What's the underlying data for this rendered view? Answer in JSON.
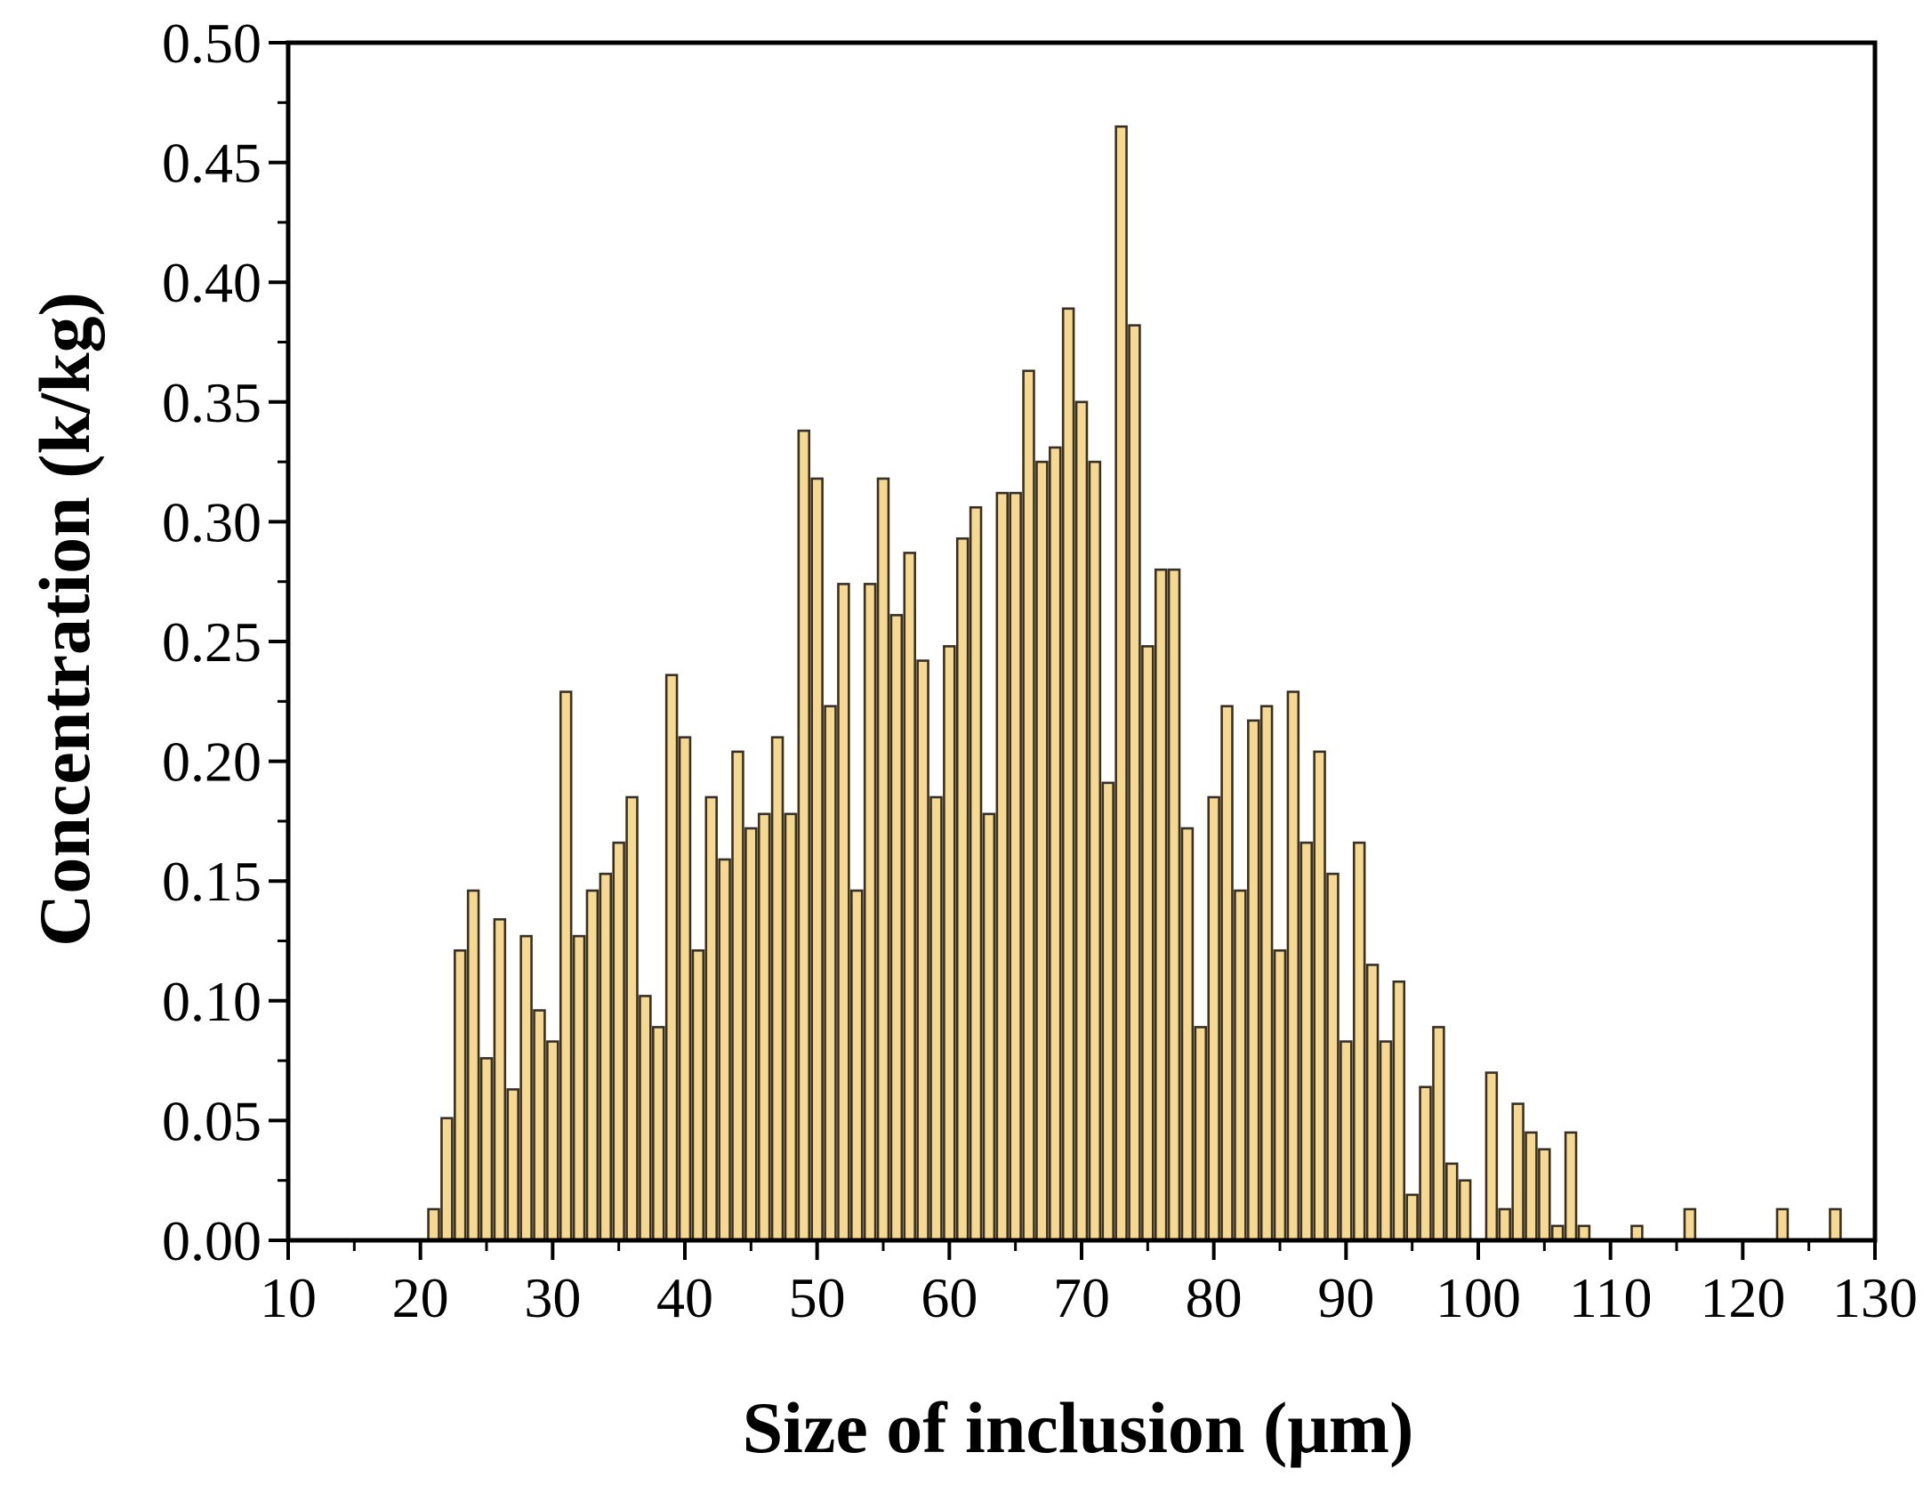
{
  "chart_data": {
    "type": "bar",
    "title": "",
    "xlabel": "Size of inclusion (μm)",
    "ylabel": "Concentration (k/kg)",
    "xlim": [
      10,
      130
    ],
    "ylim": [
      0,
      0.5
    ],
    "x_ticks": [
      10,
      20,
      30,
      40,
      50,
      60,
      70,
      80,
      90,
      100,
      110,
      120,
      130
    ],
    "x_tick_labels": [
      "10",
      "20",
      "30",
      "40",
      "50",
      "60",
      "70",
      "80",
      "90",
      "100",
      "110",
      "120",
      "130"
    ],
    "y_ticks": [
      0,
      0.05,
      0.1,
      0.15,
      0.2,
      0.25,
      0.3,
      0.35,
      0.4,
      0.45,
      0.5
    ],
    "y_tick_labels": [
      "0.00",
      "0.05",
      "0.10",
      "0.15",
      "0.20",
      "0.25",
      "0.30",
      "0.35",
      "0.40",
      "0.45",
      "0.50"
    ],
    "bar_width": 0.8,
    "grid": false,
    "legend": "none",
    "colors": {
      "bar_fill": "#f5d891",
      "bar_edge": "#3a3020",
      "axis": "#000000"
    },
    "x": [
      21,
      22,
      23,
      24,
      25,
      26,
      27,
      28,
      29,
      30,
      31,
      32,
      33,
      34,
      35,
      36,
      37,
      38,
      39,
      40,
      41,
      42,
      43,
      44,
      45,
      46,
      47,
      48,
      49,
      50,
      51,
      52,
      53,
      54,
      55,
      56,
      57,
      58,
      59,
      60,
      61,
      62,
      63,
      64,
      65,
      66,
      67,
      68,
      69,
      70,
      71,
      72,
      73,
      74,
      75,
      76,
      77,
      78,
      79,
      80,
      81,
      82,
      83,
      84,
      85,
      86,
      87,
      88,
      89,
      90,
      91,
      92,
      93,
      94,
      95,
      96,
      97,
      98,
      99,
      101,
      102,
      103,
      104,
      105,
      106,
      107,
      108,
      112,
      116,
      123,
      127
    ],
    "values": [
      0.013,
      0.051,
      0.121,
      0.146,
      0.076,
      0.134,
      0.063,
      0.127,
      0.096,
      0.083,
      0.229,
      0.127,
      0.146,
      0.153,
      0.166,
      0.185,
      0.102,
      0.089,
      0.236,
      0.21,
      0.121,
      0.185,
      0.159,
      0.204,
      0.172,
      0.178,
      0.21,
      0.178,
      0.338,
      0.318,
      0.223,
      0.274,
      0.146,
      0.274,
      0.318,
      0.261,
      0.287,
      0.242,
      0.185,
      0.248,
      0.293,
      0.306,
      0.178,
      0.312,
      0.312,
      0.363,
      0.325,
      0.331,
      0.389,
      0.35,
      0.325,
      0.191,
      0.465,
      0.382,
      0.248,
      0.28,
      0.28,
      0.172,
      0.089,
      0.185,
      0.223,
      0.146,
      0.217,
      0.223,
      0.121,
      0.229,
      0.166,
      0.204,
      0.153,
      0.083,
      0.166,
      0.115,
      0.083,
      0.108,
      0.019,
      0.064,
      0.089,
      0.032,
      0.025,
      0.07,
      0.013,
      0.057,
      0.045,
      0.038,
      0.006,
      0.045,
      0.006,
      0.006,
      0.013,
      0.013,
      0.013
    ]
  }
}
